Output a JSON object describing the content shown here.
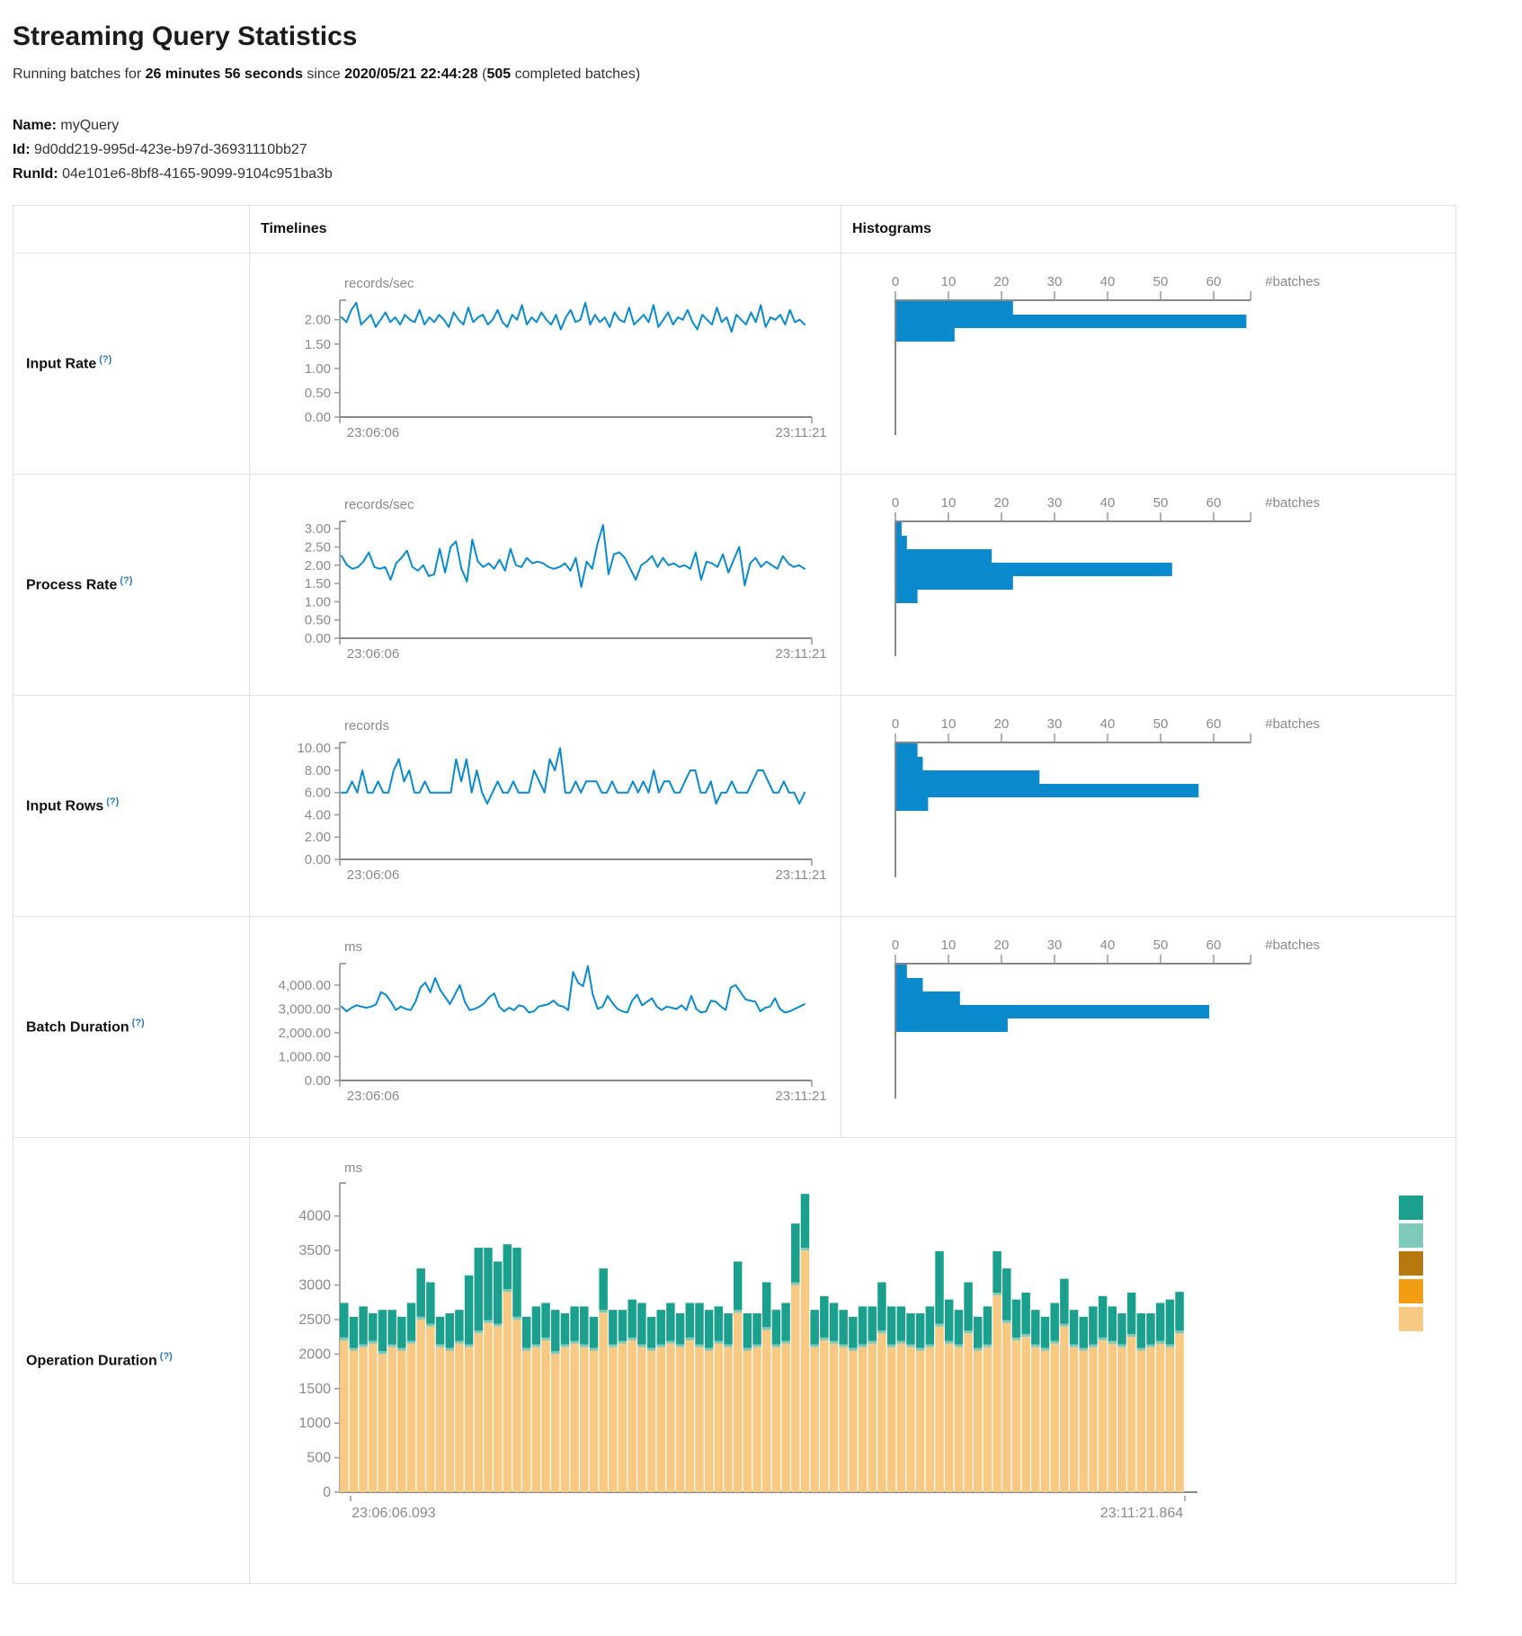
{
  "page": {
    "title": "Streaming Query Statistics",
    "status": {
      "p1": "Running batches for ",
      "duration": "26 minutes 56 seconds",
      "p2": " since ",
      "timestamp": "2020/05/21 22:44:28",
      "p3": " (",
      "count": "505",
      "p4": " completed batches)"
    },
    "query": {
      "name_label": "Name:",
      "name": "myQuery",
      "id_label": "Id:",
      "id": "9d0dd219-995d-423e-b97d-36931110bb27",
      "runid_label": "RunId:",
      "runid": "04e101e6-8bf8-4165-9099-9104c951ba3b"
    }
  },
  "table": {
    "headers": {
      "timelines": "Timelines",
      "histograms": "Histograms"
    },
    "rows": [
      {
        "label": "Input Rate",
        "help": "(?)"
      },
      {
        "label": "Process Rate",
        "help": "(?)"
      },
      {
        "label": "Input Rows",
        "help": "(?)"
      },
      {
        "label": "Batch Duration",
        "help": "(?)"
      },
      {
        "label": "Operation Duration",
        "help": "(?)"
      }
    ]
  },
  "colors": {
    "line_blue": "#0a8acd",
    "axis_dark": "#888888",
    "tick_gray": "#8a8a8a",
    "stack_green": "#1aa08c",
    "stack_light_teal": "#7fc9bb",
    "stack_dark_gold": "#b7780f",
    "stack_orange": "#f39d12",
    "stack_tan": "#f8c983"
  },
  "chart_data": [
    {
      "id": "input-rate",
      "type": "line",
      "title_unit": "records/sec",
      "x_left": "23:06:06",
      "x_right": "23:11:21",
      "y_ticks": [
        0,
        0.5,
        1,
        1.5,
        2
      ],
      "y_tick_labels": [
        "0.00",
        "0.50",
        "1.00",
        "1.50",
        "2.00"
      ],
      "ymax": 2.4,
      "values": [
        2.05,
        1.95,
        2.2,
        2.35,
        1.9,
        2.0,
        2.1,
        1.85,
        2.0,
        2.15,
        1.95,
        2.05,
        1.9,
        2.1,
        2.0,
        1.95,
        2.2,
        1.9,
        2.05,
        1.95,
        2.1,
        2.0,
        1.85,
        2.15,
        2.0,
        1.9,
        2.25,
        1.95,
        2.05,
        2.1,
        1.9,
        2.0,
        2.2,
        1.95,
        1.85,
        2.1,
        2.0,
        2.3,
        1.9,
        2.05,
        1.95,
        2.15,
        2.0,
        1.9,
        2.1,
        1.8,
        2.05,
        2.2,
        1.95,
        2.0,
        2.35,
        1.9,
        2.1,
        1.95,
        2.05,
        1.85,
        2.15,
        2.0,
        1.95,
        2.25,
        1.9,
        2.0,
        2.1,
        1.95,
        2.3,
        1.85,
        2.0,
        2.15,
        1.9,
        2.05,
        2.0,
        2.2,
        1.95,
        1.8,
        2.1,
        2.0,
        1.9,
        2.25,
        1.95,
        2.05,
        1.75,
        2.1,
        2.0,
        1.9,
        2.15,
        1.95,
        2.3,
        1.85,
        2.05,
        2.0,
        2.1,
        1.9,
        2.2,
        1.95,
        2.0,
        1.9
      ],
      "histogram": {
        "x_ticks": [
          0,
          10,
          20,
          30,
          40,
          50,
          60
        ],
        "x_tick_labels": [
          "0",
          "10",
          "20",
          "30",
          "40",
          "50",
          "60"
        ],
        "axis_max": 67,
        "bins": [
          22,
          66,
          11
        ],
        "right_label": "#batches"
      }
    },
    {
      "id": "process-rate",
      "type": "line",
      "title_unit": "records/sec",
      "x_left": "23:06:06",
      "x_right": "23:11:21",
      "y_ticks": [
        0,
        0.5,
        1,
        1.5,
        2,
        2.5,
        3
      ],
      "y_tick_labels": [
        "0.00",
        "0.50",
        "1.00",
        "1.50",
        "2.00",
        "2.50",
        "3.00"
      ],
      "ymax": 3.2,
      "values": [
        2.25,
        2.0,
        1.9,
        1.95,
        2.1,
        2.35,
        1.95,
        1.9,
        1.95,
        1.6,
        2.05,
        2.2,
        2.4,
        1.95,
        1.85,
        2.0,
        1.7,
        1.75,
        2.45,
        1.8,
        2.5,
        2.65,
        1.9,
        1.55,
        2.7,
        2.1,
        1.95,
        2.05,
        1.9,
        2.15,
        1.85,
        2.45,
        2.0,
        1.95,
        2.2,
        2.05,
        2.1,
        2.05,
        1.95,
        1.9,
        1.95,
        2.05,
        1.85,
        2.2,
        1.4,
        2.1,
        1.9,
        2.6,
        3.1,
        1.75,
        2.3,
        2.35,
        2.2,
        1.9,
        1.6,
        2.0,
        2.1,
        2.25,
        1.95,
        2.2,
        2.0,
        2.05,
        1.95,
        2.0,
        1.9,
        2.35,
        1.6,
        2.1,
        2.05,
        1.95,
        2.3,
        1.8,
        2.15,
        2.5,
        1.45,
        2.05,
        2.2,
        1.95,
        2.1,
        2.0,
        1.9,
        2.25,
        2.05,
        1.95,
        2.0,
        1.9
      ],
      "histogram": {
        "x_ticks": [
          0,
          10,
          20,
          30,
          40,
          50,
          60
        ],
        "x_tick_labels": [
          "0",
          "10",
          "20",
          "30",
          "40",
          "50",
          "60"
        ],
        "axis_max": 67,
        "bins": [
          1,
          2,
          18,
          52,
          22,
          4
        ],
        "right_label": "#batches"
      }
    },
    {
      "id": "input-rows",
      "type": "line",
      "title_unit": "records",
      "x_left": "23:06:06",
      "x_right": "23:11:21",
      "y_ticks": [
        0,
        2,
        4,
        6,
        8,
        10
      ],
      "y_tick_labels": [
        "0.00",
        "2.00",
        "4.00",
        "6.00",
        "8.00",
        "10.00"
      ],
      "ymax": 10.5,
      "values": [
        6,
        6,
        7,
        6,
        8,
        6,
        6,
        7,
        6,
        6,
        8,
        9,
        7,
        8,
        6,
        6,
        7,
        6,
        6,
        6,
        6,
        6,
        9,
        7,
        9,
        6,
        8,
        6,
        5,
        6,
        7,
        6,
        6,
        7,
        6,
        6,
        6,
        8,
        7,
        6,
        9,
        8,
        10,
        6,
        6,
        7,
        6,
        7,
        7,
        7,
        6,
        6,
        7,
        6,
        6,
        6,
        7,
        6,
        7,
        6,
        8,
        6,
        7,
        7,
        6,
        6,
        7,
        8,
        8,
        6,
        6,
        7,
        5,
        6,
        6,
        7,
        6,
        6,
        6,
        7,
        8,
        8,
        7,
        6,
        6,
        7,
        6,
        6,
        5,
        6
      ],
      "histogram": {
        "x_ticks": [
          0,
          10,
          20,
          30,
          40,
          50,
          60
        ],
        "x_tick_labels": [
          "0",
          "10",
          "20",
          "30",
          "40",
          "50",
          "60"
        ],
        "axis_max": 67,
        "bins": [
          4,
          5,
          27,
          57,
          6
        ],
        "right_label": "#batches"
      }
    },
    {
      "id": "batch-duration",
      "type": "line",
      "title_unit": "ms",
      "x_left": "23:06:06",
      "x_right": "23:11:21",
      "y_ticks": [
        0,
        1000,
        2000,
        3000,
        4000
      ],
      "y_tick_labels": [
        "0.00",
        "1,000.00",
        "2,000.00",
        "3,000.00",
        "4,000.00"
      ],
      "ymax": 4900,
      "values": [
        3100,
        2900,
        3050,
        3150,
        3100,
        3050,
        3100,
        3200,
        3700,
        3600,
        3300,
        2950,
        3100,
        3000,
        2950,
        3300,
        3900,
        4100,
        3700,
        4300,
        3800,
        3500,
        3200,
        3600,
        4000,
        3300,
        2950,
        3000,
        3100,
        3250,
        3500,
        3650,
        3100,
        2900,
        3050,
        2950,
        3150,
        3100,
        2850,
        2900,
        3100,
        3150,
        3200,
        3350,
        3150,
        3100,
        2950,
        4550,
        4100,
        3950,
        4800,
        3600,
        3000,
        3100,
        3550,
        3250,
        3000,
        2900,
        2850,
        3350,
        3600,
        3150,
        3300,
        3450,
        3100,
        2950,
        3100,
        3050,
        3000,
        3150,
        2950,
        3550,
        3000,
        2850,
        2900,
        3350,
        3300,
        3100,
        2950,
        3900,
        4000,
        3700,
        3400,
        3350,
        3300,
        2900,
        3050,
        3100,
        3450,
        3000,
        2850,
        2900,
        3000,
        3100,
        3200
      ],
      "histogram": {
        "x_ticks": [
          0,
          10,
          20,
          30,
          40,
          50,
          60
        ],
        "x_tick_labels": [
          "0",
          "10",
          "20",
          "30",
          "40",
          "50",
          "60"
        ],
        "axis_max": 67,
        "bins": [
          2,
          5,
          12,
          59,
          21
        ],
        "right_label": "#batches"
      }
    },
    {
      "id": "operation-duration",
      "type": "stacked-bar",
      "title_unit": "ms",
      "x_left": "23:06:06.093",
      "x_right": "23:11:21.864",
      "y_ticks": [
        0,
        500,
        1000,
        1500,
        2000,
        2500,
        3000,
        3500,
        4000
      ],
      "y_tick_labels": [
        "0",
        "500",
        "1000",
        "1500",
        "2000",
        "2500",
        "3000",
        "3500",
        "4000"
      ],
      "ymax": 4400,
      "series": [
        {
          "name": "bottom-segment",
          "color": "#f8c983",
          "values": [
            2200,
            2050,
            2100,
            2150,
            2000,
            2100,
            2050,
            2150,
            2500,
            2400,
            2100,
            2050,
            2150,
            2100,
            2300,
            2450,
            2400,
            2900,
            2500,
            2050,
            2100,
            2200,
            2000,
            2100,
            2150,
            2100,
            2050,
            2600,
            2100,
            2150,
            2200,
            2100,
            2050,
            2100,
            2150,
            2100,
            2200,
            2100,
            2050,
            2150,
            2100,
            2600,
            2050,
            2100,
            2350,
            2100,
            2150,
            3000,
            3500,
            2100,
            2200,
            2150,
            2100,
            2050,
            2100,
            2150,
            2300,
            2100,
            2150,
            2100,
            2050,
            2100,
            2400,
            2150,
            2100,
            2300,
            2050,
            2100,
            2850,
            2450,
            2200,
            2250,
            2100,
            2050,
            2150,
            2400,
            2100,
            2050,
            2100,
            2200,
            2150,
            2100,
            2250,
            2050,
            2100,
            2150,
            2100,
            2300
          ]
        },
        {
          "name": "middle-segment",
          "color": "#7fc9bb",
          "constant": 40
        },
        {
          "name": "top-segment",
          "color": "#1aa08c",
          "values": [
            500,
            450,
            550,
            400,
            600,
            500,
            450,
            550,
            700,
            600,
            400,
            500,
            450,
            1000,
            1200,
            1050,
            900,
            650,
            1000,
            450,
            550,
            500,
            600,
            450,
            500,
            550,
            450,
            600,
            500,
            450,
            550,
            600,
            450,
            500,
            550,
            450,
            500,
            600,
            550,
            500,
            450,
            700,
            500,
            450,
            650,
            500,
            550,
            850,
            780,
            500,
            600,
            550,
            500,
            450,
            550,
            500,
            700,
            550,
            500,
            450,
            500,
            550,
            1050,
            600,
            500,
            700,
            450,
            550,
            600,
            750,
            550,
            600,
            500,
            450,
            550,
            650,
            500,
            450,
            550,
            600,
            500,
            450,
            600,
            500,
            450,
            550,
            650,
            560
          ]
        }
      ],
      "legend_colors": [
        "#1aa08c",
        "#7fc9bb",
        "#b7780f",
        "#f39d12",
        "#f8c983"
      ]
    }
  ]
}
